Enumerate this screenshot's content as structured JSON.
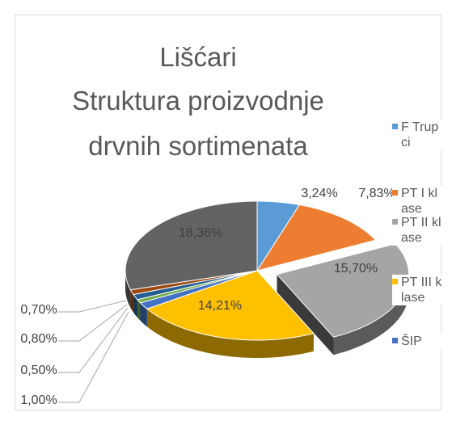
{
  "chart_data": {
    "type": "pie",
    "title": [
      "Lišćari",
      "Struktura proizvodnje",
      "drvnih sortimenata"
    ],
    "categories": [
      "F Trupci",
      "PT I klase",
      "PT II klase",
      "PT III klase",
      "ŠIP",
      null,
      null,
      null,
      null
    ],
    "values": [
      3.24,
      7.83,
      15.7,
      14.21,
      1.0,
      0.5,
      0.8,
      0.7,
      18.36
    ],
    "value_labels": [
      "3,24%",
      "7,83%",
      "15,70%",
      "14,21%",
      "1,00%",
      "0,50%",
      "0,80%",
      "0,70%",
      "18,36%"
    ],
    "colors": [
      "#5b9bd5",
      "#ed7d31",
      "#a5a5a5",
      "#ffc000",
      "#4472c4",
      "#70ad47",
      "#255e91",
      "#9e480e",
      "#636363"
    ],
    "explode": [
      false,
      false,
      true,
      false,
      false,
      false,
      false,
      false,
      false
    ],
    "legend": "right"
  }
}
